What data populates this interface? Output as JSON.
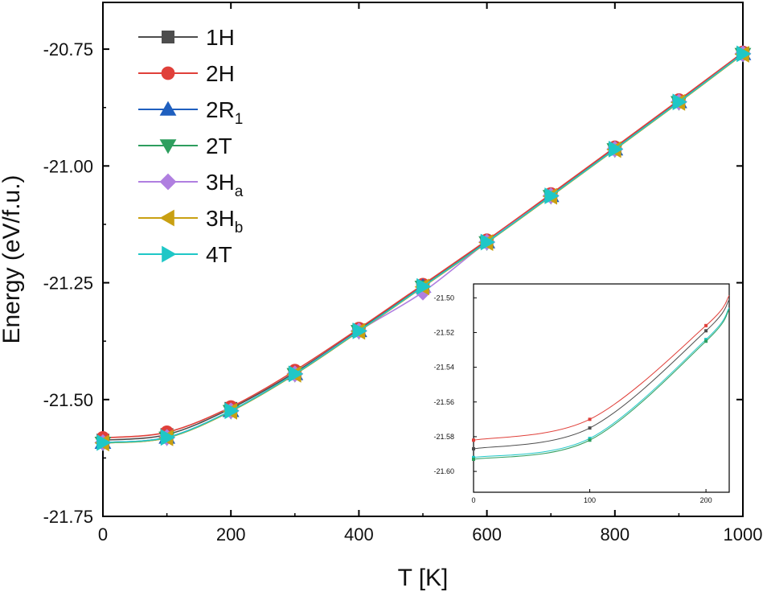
{
  "chart_data": [
    {
      "type": "line",
      "xlabel": "T [K]",
      "ylabel": "Energy (eV/f.u.)",
      "xlim": [
        0,
        1000
      ],
      "ylim": [
        -21.75,
        -20.65
      ],
      "x_ticks": [
        0,
        200,
        400,
        600,
        800,
        1000
      ],
      "y_ticks": [
        -21.75,
        -21.5,
        -21.25,
        -21.0,
        -20.75
      ],
      "x_tick_labels": [
        "0",
        "200",
        "400",
        "600",
        "800",
        "1000"
      ],
      "y_tick_labels": [
        "-21.75",
        "-21.50",
        "-21.25",
        "-21.00",
        "-20.75"
      ],
      "grid": false,
      "legend_position": "top-left",
      "x": [
        0,
        100,
        200,
        300,
        400,
        500,
        600,
        700,
        800,
        900,
        1000
      ],
      "series": [
        {
          "name": "1H",
          "label_main": "1H",
          "label_sub": "",
          "marker": "square",
          "color": "#4d4d4d",
          "values": [
            -21.587,
            -21.575,
            -21.519,
            -21.442,
            -21.351,
            -21.257,
            -21.162,
            -21.063,
            -20.963,
            -20.862,
            -20.759
          ]
        },
        {
          "name": "2H",
          "label_main": "2H",
          "label_sub": "",
          "marker": "circle",
          "color": "#e0403a",
          "values": [
            -21.582,
            -21.57,
            -21.516,
            -21.438,
            -21.348,
            -21.254,
            -21.159,
            -21.06,
            -20.96,
            -20.859,
            -20.757
          ]
        },
        {
          "name": "2R1",
          "label_main": "2R",
          "label_sub": "1",
          "marker": "triangle-up",
          "color": "#1f5fbf",
          "values": [
            -21.592,
            -21.581,
            -21.524,
            -21.445,
            -21.353,
            -21.258,
            -21.163,
            -21.064,
            -20.964,
            -20.863,
            -20.76
          ]
        },
        {
          "name": "2T",
          "label_main": "2T",
          "label_sub": "",
          "marker": "triangle-down",
          "color": "#2e9e5e",
          "values": [
            -21.593,
            -21.582,
            -21.525,
            -21.446,
            -21.354,
            -21.259,
            -21.164,
            -21.065,
            -20.965,
            -20.864,
            -20.761
          ]
        },
        {
          "name": "3Ha",
          "label_main": "3H",
          "label_sub": "a",
          "marker": "diamond",
          "color": "#b07fe0",
          "values": [
            -21.592,
            -21.581,
            -21.524,
            -21.445,
            -21.353,
            -21.27,
            -21.163,
            -21.064,
            -20.964,
            -20.863,
            -20.76
          ]
        },
        {
          "name": "3Hb",
          "label_main": "3H",
          "label_sub": "b",
          "marker": "triangle-left",
          "color": "#c9a012",
          "values": [
            -21.593,
            -21.582,
            -21.525,
            -21.446,
            -21.354,
            -21.259,
            -21.164,
            -21.065,
            -20.965,
            -20.864,
            -20.761
          ]
        },
        {
          "name": "4T",
          "label_main": "4T",
          "label_sub": "",
          "marker": "triangle-right",
          "color": "#1fc7c7",
          "values": [
            -21.592,
            -21.581,
            -21.524,
            -21.445,
            -21.353,
            -21.258,
            -21.163,
            -21.064,
            -20.964,
            -20.863,
            -20.76
          ]
        }
      ]
    },
    {
      "type": "line",
      "inset": true,
      "xlim": [
        0,
        220
      ],
      "ylim": [
        -21.612,
        -21.492
      ],
      "x_ticks": [
        0,
        100,
        200
      ],
      "y_ticks": [
        -21.6,
        -21.58,
        -21.56,
        -21.54,
        -21.52,
        -21.5
      ],
      "x_tick_labels": [
        "0",
        "100",
        "200"
      ],
      "y_tick_labels": [
        "-21.60",
        "-21.58",
        "-21.56",
        "-21.54",
        "-21.52",
        "-21.50"
      ],
      "x": [
        0,
        100,
        200
      ],
      "series": [
        {
          "name": "2H",
          "color": "#e0403a",
          "values": [
            -21.582,
            -21.57,
            -21.516
          ]
        },
        {
          "name": "1H",
          "color": "#4d4d4d",
          "values": [
            -21.587,
            -21.575,
            -21.519
          ]
        },
        {
          "name": "4T",
          "color": "#1fc7c7",
          "values": [
            -21.592,
            -21.581,
            -21.524
          ]
        },
        {
          "name": "2T",
          "color": "#2e9e5e",
          "values": [
            -21.593,
            -21.582,
            -21.525
          ]
        }
      ]
    }
  ]
}
